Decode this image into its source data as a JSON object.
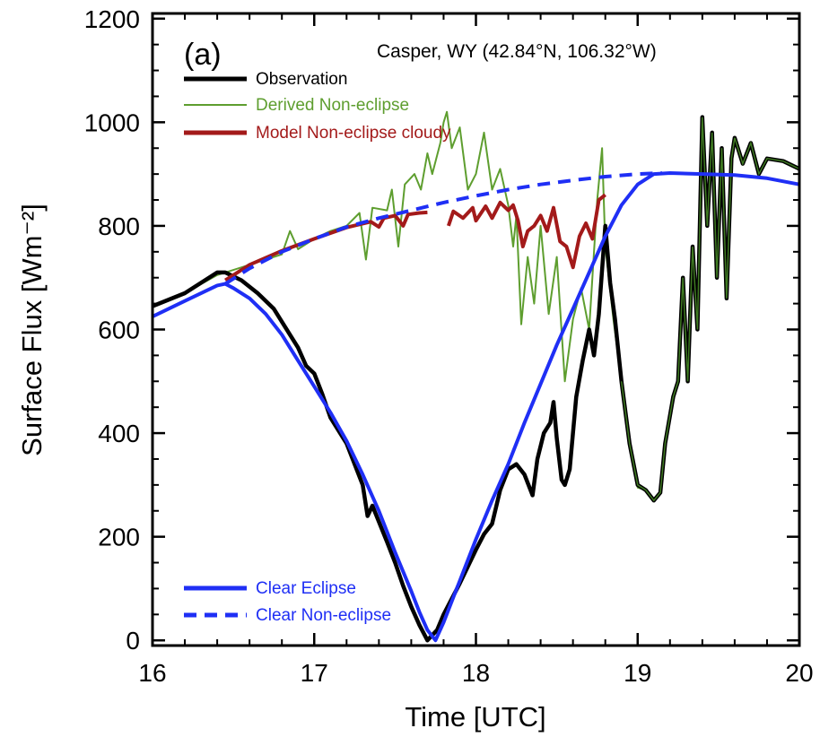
{
  "chart_data": {
    "type": "line",
    "panel_label": "(a)",
    "location_label": "Casper, WY (42.84°N, 106.32°W)",
    "xlabel": "Time [UTC]",
    "ylabel": "Surface Flux [Wm⁻²]",
    "xlim": [
      16,
      20
    ],
    "ylim": [
      -10,
      1210
    ],
    "xticks": [
      16,
      17,
      18,
      19,
      20
    ],
    "yticks": [
      0,
      200,
      400,
      600,
      800,
      1000,
      1200
    ],
    "grid": false,
    "legend_top": [
      "Observation",
      "Derived Non-eclipse",
      "Model Non-eclipse cloudy"
    ],
    "legend_bottom": [
      "Clear Eclipse",
      "Clear Non-eclipse"
    ],
    "series": [
      {
        "name": "Derived Non-eclipse",
        "color": "#5e9e2f",
        "style": "solid",
        "points": [
          [
            16.0,
            645
          ],
          [
            16.2,
            670
          ],
          [
            16.4,
            705
          ],
          [
            16.6,
            725
          ],
          [
            16.8,
            745
          ],
          [
            16.85,
            790
          ],
          [
            16.9,
            755
          ],
          [
            17.0,
            775
          ],
          [
            17.1,
            790
          ],
          [
            17.2,
            800
          ],
          [
            17.28,
            825
          ],
          [
            17.32,
            735
          ],
          [
            17.36,
            835
          ],
          [
            17.45,
            830
          ],
          [
            17.48,
            870
          ],
          [
            17.52,
            760
          ],
          [
            17.56,
            880
          ],
          [
            17.62,
            900
          ],
          [
            17.66,
            870
          ],
          [
            17.7,
            940
          ],
          [
            17.73,
            900
          ],
          [
            17.78,
            960
          ],
          [
            17.8,
            1000
          ],
          [
            17.82,
            1020
          ],
          [
            17.85,
            950
          ],
          [
            17.9,
            990
          ],
          [
            17.95,
            870
          ],
          [
            18.0,
            900
          ],
          [
            18.05,
            980
          ],
          [
            18.1,
            870
          ],
          [
            18.15,
            910
          ],
          [
            18.2,
            840
          ],
          [
            18.23,
            760
          ],
          [
            18.25,
            820
          ],
          [
            18.28,
            610
          ],
          [
            18.32,
            740
          ],
          [
            18.36,
            650
          ],
          [
            18.4,
            800
          ],
          [
            18.45,
            630
          ],
          [
            18.5,
            740
          ],
          [
            18.55,
            500
          ],
          [
            18.6,
            620
          ],
          [
            18.65,
            680
          ],
          [
            18.7,
            600
          ],
          [
            18.75,
            850
          ],
          [
            18.78,
            950
          ],
          [
            18.8,
            760
          ],
          [
            18.85,
            620
          ],
          [
            18.9,
            500
          ],
          [
            18.95,
            380
          ],
          [
            19.0,
            295
          ],
          [
            19.05,
            290
          ],
          [
            19.1,
            270
          ],
          [
            19.14,
            285
          ],
          [
            19.17,
            380
          ],
          [
            19.22,
            470
          ],
          [
            19.25,
            500
          ],
          [
            19.28,
            700
          ],
          [
            19.31,
            500
          ],
          [
            19.34,
            760
          ],
          [
            19.37,
            600
          ],
          [
            19.4,
            1010
          ],
          [
            19.43,
            800
          ],
          [
            19.46,
            980
          ],
          [
            19.49,
            700
          ],
          [
            19.52,
            950
          ],
          [
            19.55,
            660
          ],
          [
            19.58,
            930
          ],
          [
            19.6,
            970
          ],
          [
            19.65,
            920
          ],
          [
            19.7,
            960
          ],
          [
            19.75,
            900
          ],
          [
            19.8,
            930
          ],
          [
            19.9,
            925
          ],
          [
            20.0,
            910
          ]
        ]
      },
      {
        "name": "Observation",
        "color": "#000000",
        "style": "solid",
        "points": [
          [
            16.0,
            645
          ],
          [
            16.2,
            670
          ],
          [
            16.4,
            710
          ],
          [
            16.45,
            710
          ],
          [
            16.55,
            695
          ],
          [
            16.65,
            670
          ],
          [
            16.75,
            640
          ],
          [
            16.85,
            590
          ],
          [
            16.9,
            565
          ],
          [
            16.95,
            530
          ],
          [
            17.0,
            515
          ],
          [
            17.05,
            475
          ],
          [
            17.1,
            430
          ],
          [
            17.2,
            380
          ],
          [
            17.3,
            300
          ],
          [
            17.33,
            240
          ],
          [
            17.36,
            260
          ],
          [
            17.45,
            190
          ],
          [
            17.5,
            150
          ],
          [
            17.55,
            105
          ],
          [
            17.6,
            65
          ],
          [
            17.65,
            30
          ],
          [
            17.7,
            0
          ],
          [
            17.76,
            20
          ],
          [
            17.8,
            50
          ],
          [
            17.9,
            110
          ],
          [
            18.0,
            175
          ],
          [
            18.05,
            205
          ],
          [
            18.1,
            225
          ],
          [
            18.15,
            290
          ],
          [
            18.2,
            330
          ],
          [
            18.25,
            340
          ],
          [
            18.3,
            320
          ],
          [
            18.35,
            280
          ],
          [
            18.38,
            350
          ],
          [
            18.42,
            400
          ],
          [
            18.46,
            420
          ],
          [
            18.48,
            460
          ],
          [
            18.5,
            390
          ],
          [
            18.53,
            310
          ],
          [
            18.55,
            300
          ],
          [
            18.58,
            330
          ],
          [
            18.62,
            470
          ],
          [
            18.66,
            540
          ],
          [
            18.7,
            600
          ],
          [
            18.73,
            550
          ],
          [
            18.76,
            630
          ],
          [
            18.8,
            800
          ],
          [
            18.83,
            690
          ],
          [
            18.86,
            620
          ],
          [
            18.9,
            500
          ],
          [
            18.95,
            380
          ],
          [
            19.0,
            300
          ],
          [
            19.05,
            290
          ],
          [
            19.1,
            270
          ],
          [
            19.14,
            285
          ],
          [
            19.17,
            380
          ],
          [
            19.22,
            470
          ],
          [
            19.25,
            500
          ],
          [
            19.28,
            700
          ],
          [
            19.31,
            500
          ],
          [
            19.34,
            760
          ],
          [
            19.37,
            600
          ],
          [
            19.4,
            1010
          ],
          [
            19.43,
            800
          ],
          [
            19.46,
            980
          ],
          [
            19.49,
            700
          ],
          [
            19.52,
            950
          ],
          [
            19.55,
            660
          ],
          [
            19.58,
            930
          ],
          [
            19.6,
            970
          ],
          [
            19.65,
            920
          ],
          [
            19.7,
            960
          ],
          [
            19.75,
            900
          ],
          [
            19.8,
            930
          ],
          [
            19.9,
            925
          ],
          [
            20.0,
            910
          ]
        ]
      },
      {
        "name": "Model Non-eclipse cloudy",
        "color": "#a31a1a",
        "style": "solid",
        "segments": [
          [
            [
              16.45,
              695
            ],
            [
              16.6,
              725
            ],
            [
              16.8,
              752
            ],
            [
              17.0,
              775
            ],
            [
              17.2,
              797
            ],
            [
              17.35,
              808
            ],
            [
              17.4,
              798
            ],
            [
              17.43,
              815
            ],
            [
              17.5,
              820
            ],
            [
              17.55,
              800
            ],
            [
              17.58,
              822
            ],
            [
              17.65,
              825
            ],
            [
              17.7,
              826
            ]
          ],
          [
            [
              17.83,
              800
            ],
            [
              17.86,
              828
            ],
            [
              17.92,
              815
            ],
            [
              17.98,
              835
            ],
            [
              18.0,
              810
            ],
            [
              18.06,
              838
            ],
            [
              18.1,
              815
            ],
            [
              18.15,
              845
            ],
            [
              18.2,
              830
            ],
            [
              18.23,
              840
            ],
            [
              18.26,
              810
            ],
            [
              18.29,
              760
            ],
            [
              18.32,
              790
            ],
            [
              18.36,
              800
            ],
            [
              18.4,
              820
            ],
            [
              18.44,
              790
            ],
            [
              18.48,
              835
            ],
            [
              18.52,
              770
            ],
            [
              18.56,
              760
            ],
            [
              18.6,
              720
            ],
            [
              18.64,
              780
            ],
            [
              18.68,
              805
            ],
            [
              18.72,
              775
            ],
            [
              18.76,
              850
            ],
            [
              18.8,
              860
            ]
          ]
        ]
      },
      {
        "name": "Clear Non-eclipse",
        "color": "#1f2ff5",
        "style": "dashed",
        "points": [
          [
            16.45,
            688
          ],
          [
            16.6,
            718
          ],
          [
            16.8,
            750
          ],
          [
            17.0,
            775
          ],
          [
            17.2,
            798
          ],
          [
            17.4,
            815
          ],
          [
            17.6,
            830
          ],
          [
            17.8,
            845
          ],
          [
            18.0,
            858
          ],
          [
            18.2,
            870
          ],
          [
            18.4,
            880
          ],
          [
            18.6,
            888
          ],
          [
            18.8,
            895
          ],
          [
            19.0,
            900
          ],
          [
            19.15,
            902
          ]
        ]
      },
      {
        "name": "Clear Eclipse",
        "color": "#1f2ff5",
        "style": "solid",
        "points": [
          [
            16.0,
            625
          ],
          [
            16.2,
            655
          ],
          [
            16.4,
            685
          ],
          [
            16.45,
            688
          ],
          [
            16.5,
            680
          ],
          [
            16.6,
            660
          ],
          [
            16.7,
            630
          ],
          [
            16.8,
            590
          ],
          [
            16.9,
            540
          ],
          [
            17.0,
            490
          ],
          [
            17.1,
            440
          ],
          [
            17.2,
            385
          ],
          [
            17.3,
            320
          ],
          [
            17.4,
            250
          ],
          [
            17.5,
            170
          ],
          [
            17.6,
            95
          ],
          [
            17.65,
            55
          ],
          [
            17.7,
            20
          ],
          [
            17.75,
            0
          ],
          [
            17.8,
            35
          ],
          [
            17.9,
            115
          ],
          [
            18.0,
            195
          ],
          [
            18.1,
            270
          ],
          [
            18.2,
            340
          ],
          [
            18.3,
            420
          ],
          [
            18.4,
            495
          ],
          [
            18.5,
            570
          ],
          [
            18.6,
            640
          ],
          [
            18.7,
            710
          ],
          [
            18.8,
            780
          ],
          [
            18.9,
            840
          ],
          [
            19.0,
            880
          ],
          [
            19.1,
            900
          ],
          [
            19.2,
            902
          ],
          [
            19.4,
            900
          ],
          [
            19.6,
            898
          ],
          [
            19.8,
            892
          ],
          [
            20.0,
            880
          ]
        ]
      }
    ]
  }
}
